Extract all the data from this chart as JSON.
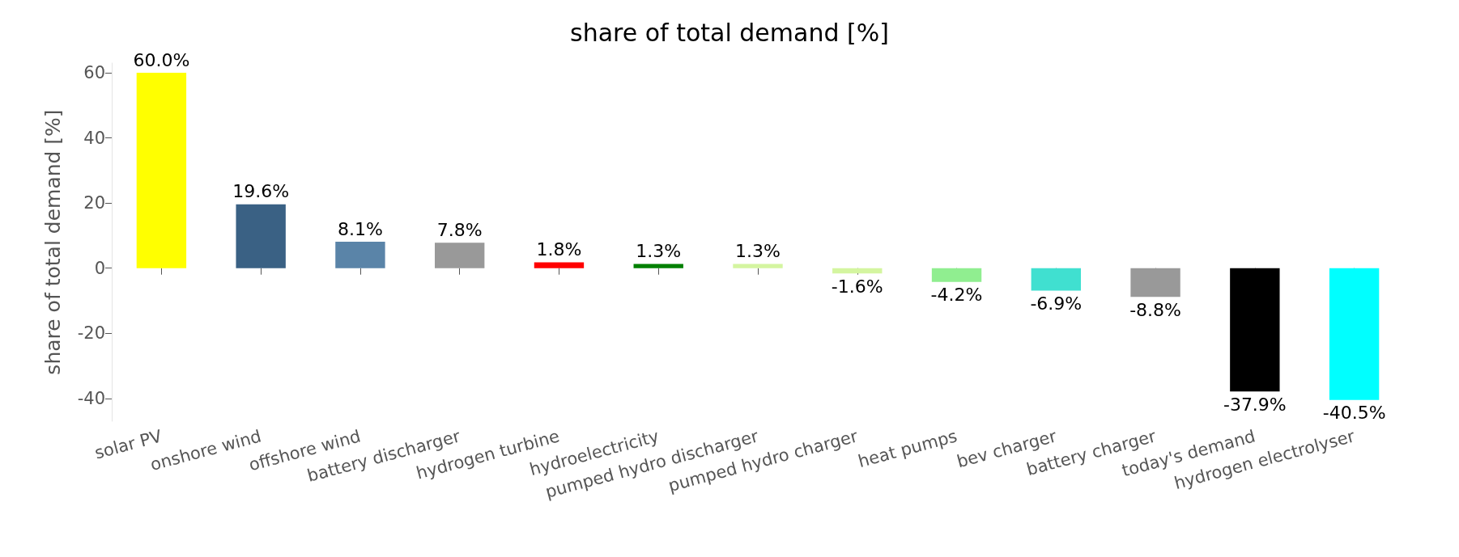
{
  "chart_data": {
    "type": "bar",
    "title": "share of total demand [%]",
    "ylabel": "share of total demand [%]",
    "categories": [
      "solar PV",
      "onshore wind",
      "offshore wind",
      "battery discharger",
      "hydrogen turbine",
      "hydroelectricity",
      "pumped hydro discharger",
      "pumped hydro charger",
      "heat pumps",
      "bev charger",
      "battery charger",
      "today's demand",
      "hydrogen electrolyser"
    ],
    "values": [
      60.0,
      19.6,
      8.1,
      7.8,
      1.8,
      1.3,
      1.3,
      -1.6,
      -4.2,
      -6.9,
      -8.8,
      -37.9,
      -40.5
    ],
    "value_labels": [
      "60.0%",
      "19.6%",
      "8.1%",
      "7.8%",
      "1.8%",
      "1.3%",
      "1.3%",
      "-1.6%",
      "-4.2%",
      "-6.9%",
      "-8.8%",
      "-37.9%",
      "-40.5%"
    ],
    "colors": [
      "#ffff00",
      "#3a6184",
      "#5a84a8",
      "#999999",
      "#ff0000",
      "#008000",
      "#d4f5a0",
      "#d4f5a0",
      "#90ee90",
      "#40e0d0",
      "#999999",
      "#000000",
      "#00ffff"
    ],
    "ylim": [
      -47,
      63
    ],
    "yticks": [
      -40,
      -20,
      0,
      20,
      40,
      60
    ],
    "grid": false
  }
}
